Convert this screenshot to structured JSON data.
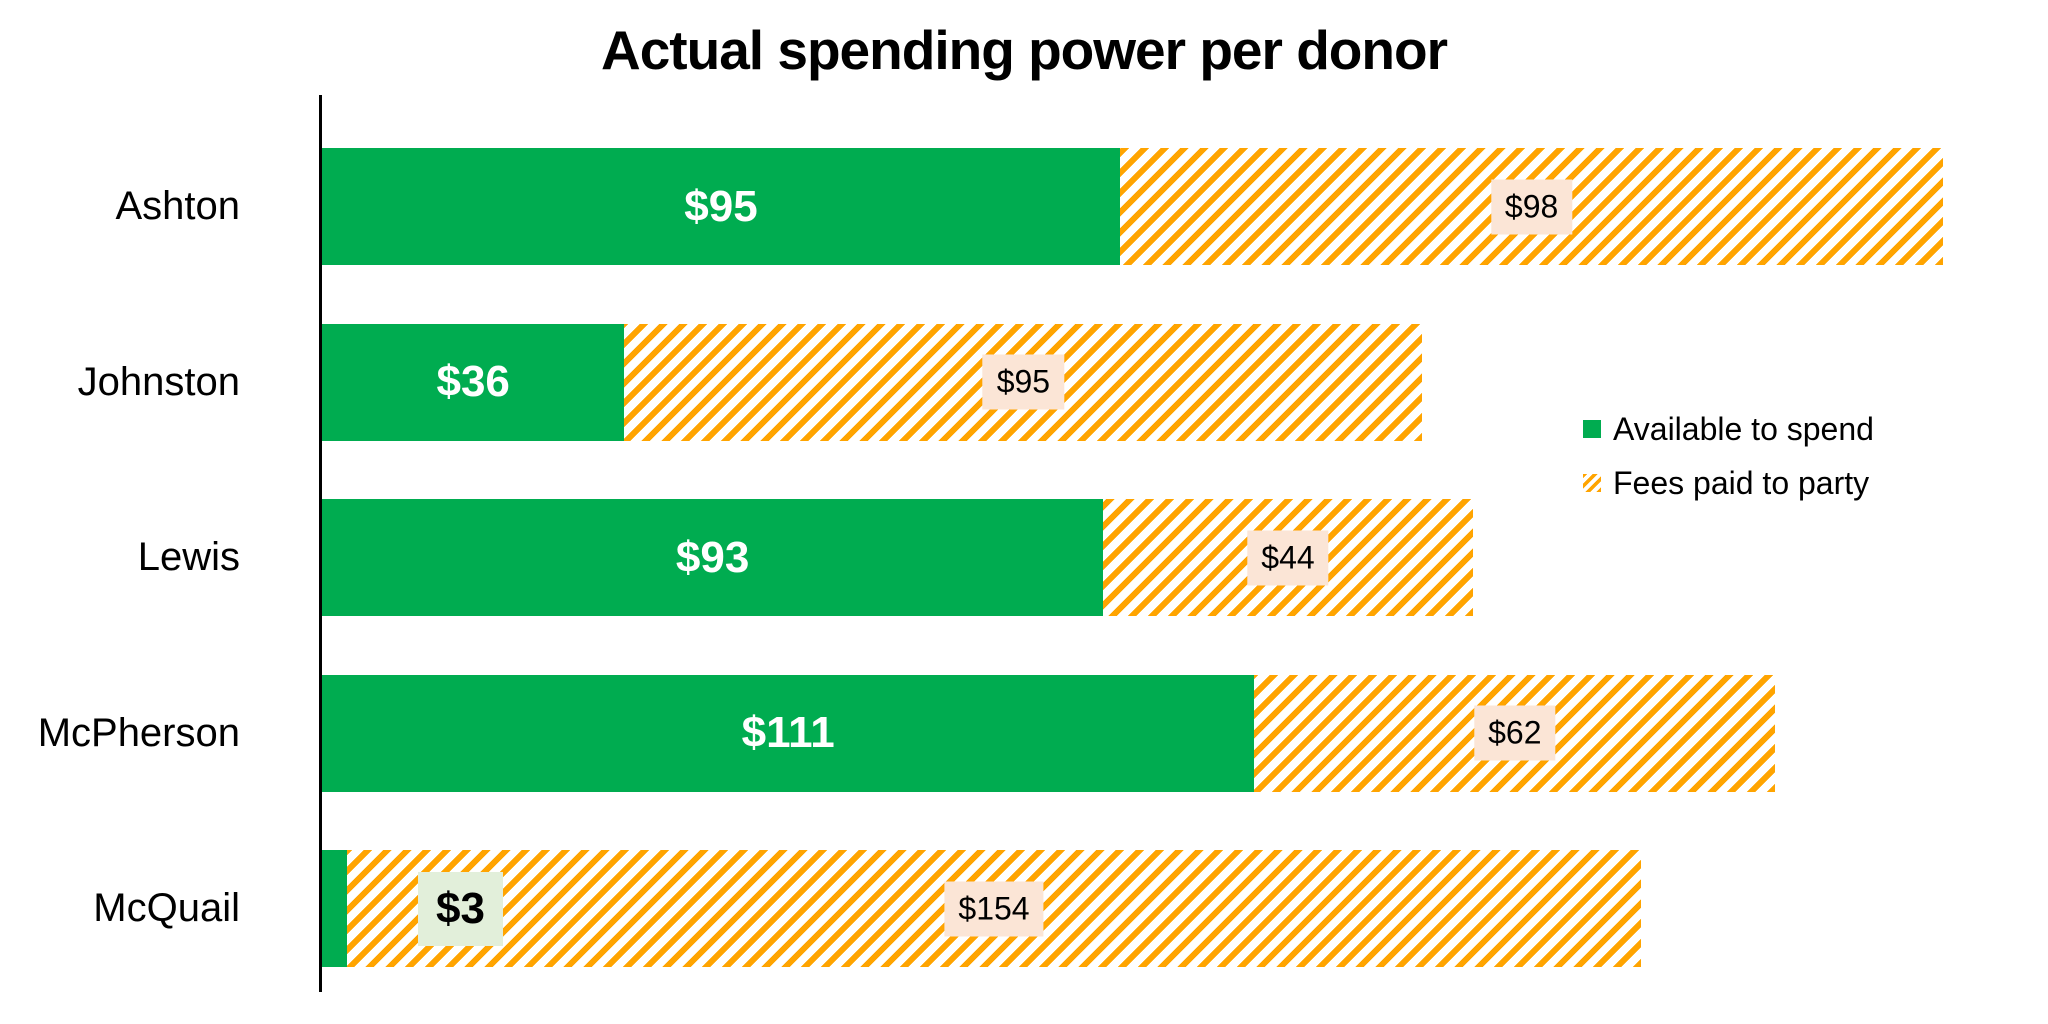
{
  "chart_data": {
    "type": "bar",
    "orientation": "horizontal",
    "stacked": true,
    "title": "Actual spending power per donor",
    "categories": [
      "Ashton",
      "Johnston",
      "Lewis",
      "McPherson",
      "McQuail"
    ],
    "series": [
      {
        "name": "Available to spend",
        "color": "#00AC50",
        "values": [
          95,
          36,
          93,
          111,
          3
        ],
        "labels": [
          "$95",
          "$36",
          "$93",
          "$111",
          "$3"
        ]
      },
      {
        "name": "Fees paid to party",
        "color": "#FFA400",
        "pattern": "diagonal-stripes",
        "values": [
          98,
          95,
          44,
          62,
          154
        ],
        "labels": [
          "$98",
          "$95",
          "$44",
          "$62",
          "$154"
        ]
      }
    ],
    "available_label_placement": [
      "inside",
      "inside",
      "inside",
      "inside",
      "outside"
    ],
    "value_label_colors": {
      "available_inside_text": "#FFFFFF",
      "available_outside_bg": "#E2EFDA",
      "fees_label_bg": "#FBE5D6",
      "label_text": "#000000"
    },
    "legend": {
      "position": "right",
      "items": [
        "Available to spend",
        "Fees paid to party"
      ]
    },
    "axis": {
      "y_axis_line_color": "#000000",
      "x_axis_visible": false,
      "gridlines": false,
      "x_implied_range_dollars": [
        0,
        205
      ]
    }
  }
}
